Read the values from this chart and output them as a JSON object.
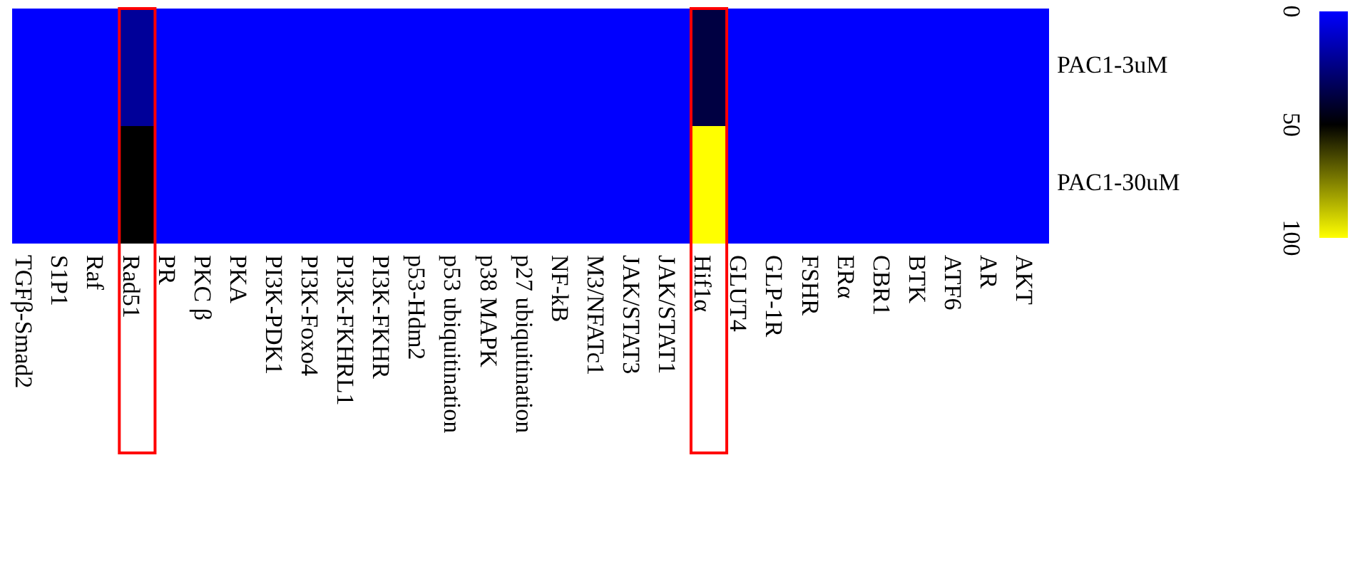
{
  "chart_data": {
    "type": "heatmap",
    "categories": [
      "TGFβ-Smad2",
      "S1P1",
      "Raf",
      "Rad51",
      "PR",
      "PKC β",
      "PKA",
      "PI3K-PDK1",
      "PI3K-Foxo4",
      "PI3K-FKHRL1",
      "PI3K-FKHR",
      "p53-Hdm2",
      "p53 ubiquitination",
      "p38 MAPK",
      "p27 ubiquitination",
      "NF-kB",
      "M3/NFATc1",
      "JAK/STAT3",
      "JAK/STAT1",
      "Hif1α",
      "GLUT4",
      "GLP-1R",
      "FSHR",
      "ERα",
      "CBR1",
      "BTK",
      "ATF6",
      "AR",
      "AKT"
    ],
    "y_categories": [
      "PAC1-3uM",
      "PAC1-30uM"
    ],
    "cells": [
      [
        0,
        0,
        0,
        20,
        0,
        0,
        0,
        0,
        0,
        0,
        0,
        0,
        0,
        0,
        0,
        0,
        0,
        0,
        0,
        37,
        0,
        0,
        0,
        0,
        0,
        0,
        0,
        0,
        0
      ],
      [
        0,
        0,
        0,
        50,
        0,
        0,
        0,
        0,
        0,
        0,
        0,
        0,
        0,
        0,
        0,
        0,
        0,
        0,
        0,
        100,
        0,
        0,
        0,
        0,
        0,
        0,
        0,
        0,
        0
      ]
    ],
    "clim": [
      0,
      100
    ],
    "cticks": [
      0,
      50,
      100
    ]
  }
}
